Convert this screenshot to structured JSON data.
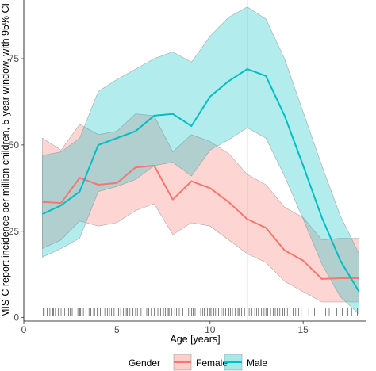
{
  "chart_data": {
    "type": "line",
    "title": "",
    "xlabel": "Age [years]",
    "ylabel": "MIS-C report incidence per million children, 5-year window, with 95% CI",
    "xlim": [
      0,
      18.4
    ],
    "ylim": [
      -1,
      92
    ],
    "x_ticks": [
      0,
      5,
      10,
      15
    ],
    "y_ticks": [
      0,
      25,
      50,
      75
    ],
    "vlines": [
      5,
      12
    ],
    "grid": false,
    "legend": {
      "title": "Gender",
      "position": "bottom",
      "entries": [
        "Female",
        "Male"
      ]
    },
    "colors": {
      "Female": "#F8766D",
      "Male": "#00BFC4",
      "Female_fill": "#F8766D",
      "Male_fill": "#00BFC4",
      "vline": "#8c8c8c"
    },
    "x": [
      1,
      2,
      3,
      4,
      5,
      6,
      7,
      8,
      9,
      10,
      11,
      12,
      13,
      14,
      15,
      16,
      17,
      18
    ],
    "series": [
      {
        "name": "Female",
        "values": [
          33.5,
          33.2,
          40.5,
          38.5,
          39.0,
          43.5,
          44.0,
          34.2,
          39.5,
          37.5,
          33.5,
          28.5,
          26.0,
          19.5,
          16.5,
          11.2,
          11.4,
          11.4
        ],
        "lower": [
          20.0,
          22.5,
          28.0,
          26.5,
          27.5,
          31.0,
          33.0,
          24.0,
          27.5,
          26.5,
          22.5,
          18.5,
          16.0,
          10.5,
          7.5,
          4.5,
          4.5,
          4.5
        ],
        "upper": [
          52.0,
          48.5,
          56.0,
          53.0,
          54.0,
          59.0,
          58.5,
          48.0,
          53.0,
          51.0,
          47.5,
          41.5,
          38.5,
          32.0,
          29.0,
          22.5,
          23.0,
          23.0
        ]
      },
      {
        "name": "Male",
        "values": [
          30.0,
          32.5,
          36.5,
          50.0,
          52.0,
          54.0,
          58.5,
          59.0,
          55.5,
          64.0,
          68.5,
          72.0,
          70.0,
          58.5,
          44.0,
          29.0,
          16.5,
          7.5
        ],
        "lower": [
          17.5,
          20.0,
          23.0,
          36.5,
          38.0,
          40.0,
          44.0,
          45.0,
          41.0,
          48.5,
          51.5,
          55.0,
          52.0,
          41.0,
          28.5,
          15.5,
          6.0,
          1.0
        ],
        "upper": [
          47.0,
          48.0,
          52.0,
          65.5,
          69.0,
          72.0,
          75.0,
          77.0,
          74.0,
          81.5,
          87.0,
          90.0,
          86.5,
          75.0,
          59.5,
          44.0,
          29.5,
          18.5
        ]
      }
    ],
    "rug_x": [
      1.05,
      1.1,
      1.25,
      1.4,
      1.55,
      1.6,
      1.7,
      1.85,
      2.0,
      2.1,
      2.2,
      2.4,
      2.5,
      2.6,
      2.75,
      2.9,
      3.0,
      3.05,
      3.2,
      3.35,
      3.5,
      3.6,
      3.75,
      3.8,
      3.95,
      4.1,
      4.2,
      4.35,
      4.5,
      4.6,
      4.7,
      4.85,
      5.0,
      5.1,
      5.2,
      5.35,
      5.5,
      5.55,
      5.7,
      5.85,
      6.0,
      6.1,
      6.25,
      6.3,
      6.45,
      6.6,
      6.7,
      6.85,
      7.0,
      7.05,
      7.2,
      7.35,
      7.5,
      7.6,
      7.75,
      7.8,
      7.95,
      8.1,
      8.2,
      8.35,
      8.5,
      8.55,
      8.7,
      8.85,
      9.0,
      9.1,
      9.2,
      9.35,
      9.5,
      9.6,
      9.7,
      9.85,
      10.0,
      10.05,
      10.2,
      10.3,
      10.45,
      10.6,
      10.7,
      10.85,
      11.0,
      11.1,
      11.2,
      11.35,
      11.5,
      11.55,
      11.7,
      11.85,
      12.0,
      12.1,
      12.25,
      12.4,
      12.5,
      12.6,
      12.75,
      12.9,
      13.0,
      13.1,
      13.25,
      13.4,
      13.5,
      13.6,
      13.75,
      13.9,
      14.0,
      14.15,
      14.3,
      14.45,
      14.6,
      14.75,
      14.9,
      15.1,
      15.3,
      15.6,
      15.9,
      16.2,
      16.4,
      16.8,
      17.1,
      17.4,
      17.6,
      17.9
    ]
  }
}
